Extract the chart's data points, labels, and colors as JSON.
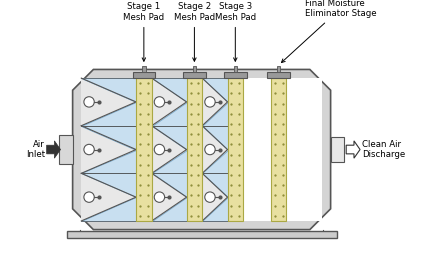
{
  "bg_color": "#ffffff",
  "housing_fill": "#d4d4d4",
  "housing_edge": "#555555",
  "mesh_color": "#e8e0a0",
  "mesh_edge": "#aaa844",
  "blue_fill": "#c8dff0",
  "blue_edge": "#7aaacc",
  "inner_fill": "#e8e8e8",
  "labels": {
    "stage1": "Stage 1\nMesh Pad",
    "stage2": "Stage 2\nMesh Pad",
    "stage3": "Stage 3\nMesh Pad",
    "final": "Final Moisture\nEliminator Stage",
    "air_inlet": "Air\nInlet",
    "clean_air": "Clean Air\nDischarge"
  },
  "figsize": [
    4.3,
    2.58
  ],
  "dpi": 100
}
